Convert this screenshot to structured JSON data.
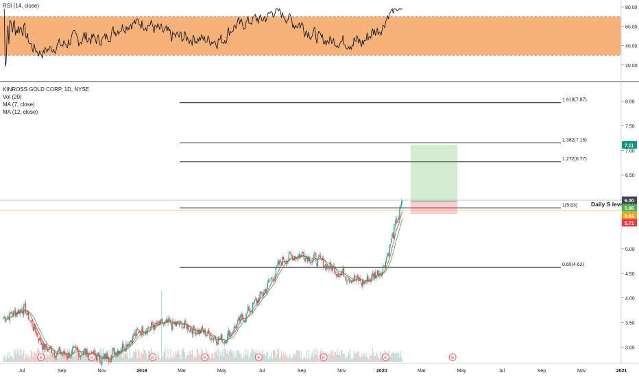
{
  "rsi_panel": {
    "legend": "RSI (14, close)",
    "ticks": [
      {
        "label": "80.00",
        "value": 80
      },
      {
        "label": "60.00",
        "value": 60
      },
      {
        "label": "40.00",
        "value": 40
      },
      {
        "label": "20.00",
        "value": 20
      }
    ],
    "band": {
      "upper": 70,
      "lower": 30,
      "color": "#f7ae73"
    },
    "range": [
      5,
      85
    ]
  },
  "main_panel": {
    "legend": [
      "KINROSS GOLD CORP, 1D, NYSE",
      "Vol (20)",
      "MA (7, close)",
      "MA (12, close)"
    ],
    "ticks": [
      "8.00",
      "7.50",
      "7.00",
      "6.50",
      "6.00",
      "5.50",
      "5.00",
      "4.50",
      "4.00",
      "3.50",
      "3.00"
    ],
    "price_range": [
      2.7,
      8.3
    ],
    "fib_levels": [
      {
        "label": "1.618(7.97)",
        "value": 7.97
      },
      {
        "label": "1.382(7.15)",
        "value": 7.15
      },
      {
        "label": "1.272(6.77)",
        "value": 6.77
      },
      {
        "label": "1(5.83)",
        "value": 5.83
      },
      {
        "label": "0.65(4.62)",
        "value": 4.62
      }
    ],
    "daily_level_label": "Daily S level",
    "daily_level_value": 5.83,
    "position": {
      "entry": 5.96,
      "target": 7.11,
      "stop": 5.71
    },
    "price_tags": [
      {
        "label": "7.11",
        "value": 7.11,
        "color": "#089981"
      },
      {
        "label": "6.00",
        "value": 6.0,
        "color": "#434651"
      },
      {
        "label": "5.96",
        "value": 5.96,
        "color": "#4caf50"
      },
      {
        "label": "5.83",
        "value": 5.83,
        "color": "#f7a21b"
      },
      {
        "label": "5.71",
        "value": 5.71,
        "color": "#f23645"
      }
    ],
    "earnings_marker": "E"
  },
  "time_axis": [
    "Jul",
    "Sep",
    "Nov",
    "2019",
    "Mar",
    "May",
    "Jul",
    "Sep",
    "Nov",
    "2020",
    "Mar",
    "May",
    "Jul",
    "Sep",
    "Nov",
    "2021"
  ],
  "colors": {
    "up": "#26a69a",
    "down": "#ef5350",
    "ma_fast": "#e53935",
    "ma_slow": "#43a047"
  },
  "chart_data": {
    "type": "candlestick",
    "title": "KINROSS GOLD CORP, 1D, NYSE",
    "months": [
      "Jun 2018",
      "Jul 2018",
      "Aug 2018",
      "Sep 2018",
      "Oct 2018",
      "Nov 2018",
      "Dec 2018",
      "Jan 2019",
      "Feb 2019",
      "Mar 2019",
      "Apr 2019",
      "May 2019",
      "Jun 2019",
      "Jul 2019",
      "Aug 2019",
      "Sep 2019",
      "Oct 2019",
      "Nov 2019",
      "Dec 2019",
      "Jan 2020",
      "Feb 2020"
    ],
    "close_approx": [
      3.6,
      3.8,
      3.0,
      2.85,
      2.9,
      2.75,
      3.05,
      3.4,
      3.45,
      3.45,
      3.3,
      3.15,
      3.6,
      4.1,
      4.8,
      4.9,
      4.7,
      4.5,
      4.3,
      4.6,
      5.96
    ],
    "fib_levels": [
      7.97,
      7.15,
      6.77,
      5.83,
      4.62
    ],
    "ylim": [
      2.7,
      8.3
    ],
    "rsi_ylim": [
      5,
      85
    ]
  }
}
